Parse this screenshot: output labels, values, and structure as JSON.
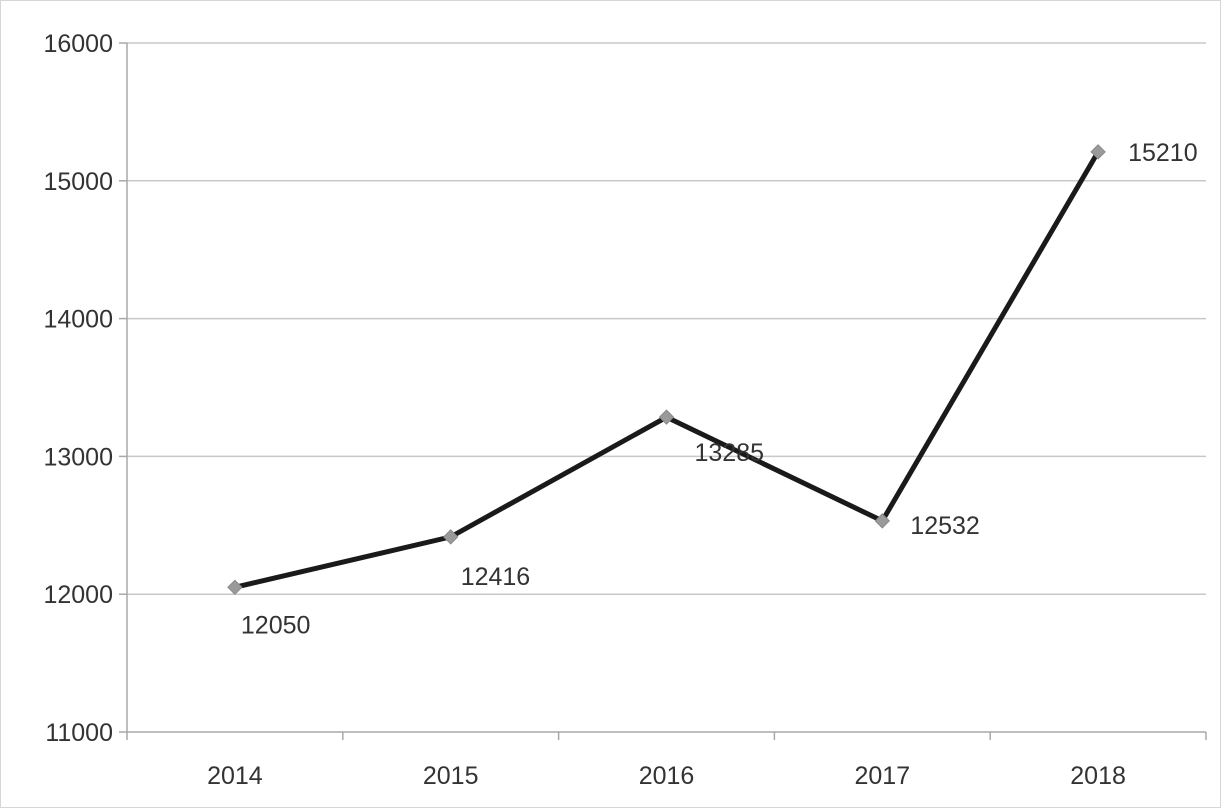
{
  "chart_data": {
    "type": "line",
    "title": "",
    "xlabel": "",
    "ylabel": "",
    "categories": [
      "2014",
      "2015",
      "2016",
      "2017",
      "2018"
    ],
    "series": [
      {
        "values": [
          12050,
          12416,
          13285,
          12532,
          15210
        ]
      }
    ],
    "data_labels": [
      "12050",
      "12416",
      "13285",
      "12532",
      "15210"
    ],
    "y_ticks": [
      "11000",
      "12000",
      "13000",
      "14000",
      "15000",
      "16000"
    ],
    "ylim": [
      11000,
      16000
    ],
    "grid": true,
    "legend": "none",
    "colors": {
      "line": "#1a1a1a",
      "marker": "#9a9a9a",
      "grid": "#c8c8c8"
    }
  }
}
